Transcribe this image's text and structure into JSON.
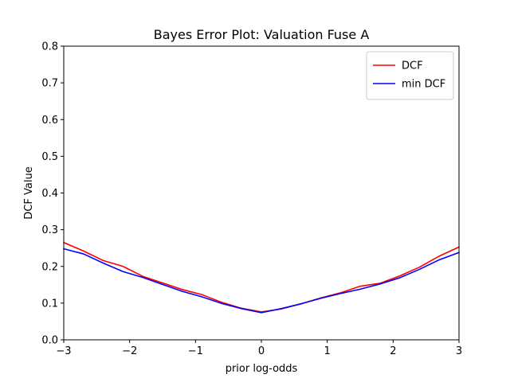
{
  "chart_data": {
    "type": "line",
    "title": "Bayes Error Plot: Valuation Fuse A",
    "xlabel": "prior log-odds",
    "ylabel": "DCF Value",
    "xlim": [
      -3,
      3
    ],
    "ylim": [
      0,
      0.8
    ],
    "xticks": [
      -3,
      -2,
      -1,
      0,
      1,
      2,
      3
    ],
    "xtick_labels": [
      "−3",
      "−2",
      "−1",
      "0",
      "1",
      "2",
      "3"
    ],
    "yticks": [
      0.0,
      0.1,
      0.2,
      0.3,
      0.4,
      0.5,
      0.6,
      0.7,
      0.8
    ],
    "ytick_labels": [
      "0.0",
      "0.1",
      "0.2",
      "0.3",
      "0.4",
      "0.5",
      "0.6",
      "0.7",
      "0.8"
    ],
    "grid": false,
    "legend_position": "top-right",
    "x": [
      -3.0,
      -2.7,
      -2.4,
      -2.1,
      -1.8,
      -1.5,
      -1.2,
      -0.9,
      -0.6,
      -0.3,
      0.0,
      0.3,
      0.6,
      0.9,
      1.2,
      1.5,
      1.8,
      2.1,
      2.4,
      2.7,
      3.0
    ],
    "series": [
      {
        "name": "DCF",
        "color": "#ff0000",
        "values": [
          0.265,
          0.242,
          0.216,
          0.2,
          0.173,
          0.155,
          0.137,
          0.123,
          0.102,
          0.086,
          0.076,
          0.084,
          0.098,
          0.114,
          0.128,
          0.146,
          0.154,
          0.174,
          0.198,
          0.228,
          0.253
        ]
      },
      {
        "name": "min DCF",
        "color": "#0000ff",
        "values": [
          0.248,
          0.234,
          0.209,
          0.186,
          0.17,
          0.151,
          0.132,
          0.117,
          0.099,
          0.085,
          0.074,
          0.085,
          0.098,
          0.113,
          0.126,
          0.138,
          0.152,
          0.169,
          0.192,
          0.218,
          0.238
        ]
      }
    ]
  }
}
